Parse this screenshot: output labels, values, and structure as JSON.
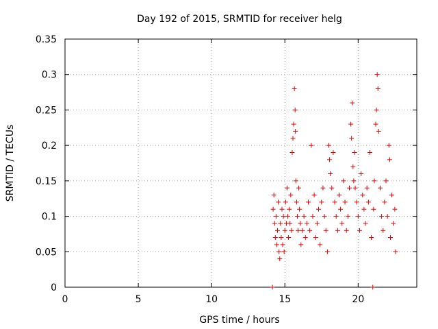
{
  "chart_data": {
    "type": "scatter",
    "title": "Day 192 of 2015, SRMTID for receiver helg",
    "xlabel": "GPS time / hours",
    "ylabel": "SRMTID / TECUs",
    "xlim": [
      0,
      24
    ],
    "ylim": [
      0,
      0.35
    ],
    "xticks": [
      0,
      5,
      10,
      15,
      20
    ],
    "xtick_labels": [
      "0",
      "5",
      "10",
      "15",
      "20"
    ],
    "yticks": [
      0,
      0.05,
      0.1,
      0.15,
      0.2,
      0.25,
      0.3,
      0.35
    ],
    "ytick_labels": [
      "0",
      "0.05",
      "0.1",
      "0.15",
      "0.2",
      "0.25",
      "0.3",
      "0.35"
    ],
    "grid": true,
    "marker": "+",
    "series_color": "#e00000",
    "series": [
      {
        "name": "SRMTID",
        "x_range": [
          14.1,
          22.6
        ],
        "points": [
          [
            14.15,
            0.0
          ],
          [
            14.2,
            0.11
          ],
          [
            14.25,
            0.13
          ],
          [
            14.3,
            0.09
          ],
          [
            14.35,
            0.07
          ],
          [
            14.4,
            0.1
          ],
          [
            14.45,
            0.06
          ],
          [
            14.5,
            0.08
          ],
          [
            14.55,
            0.12
          ],
          [
            14.6,
            0.05
          ],
          [
            14.65,
            0.04
          ],
          [
            14.7,
            0.09
          ],
          [
            14.75,
            0.07
          ],
          [
            14.8,
            0.11
          ],
          [
            14.85,
            0.06
          ],
          [
            14.9,
            0.1
          ],
          [
            14.95,
            0.05
          ],
          [
            15.0,
            0.08
          ],
          [
            15.05,
            0.12
          ],
          [
            15.1,
            0.09
          ],
          [
            15.15,
            0.14
          ],
          [
            15.2,
            0.1
          ],
          [
            15.25,
            0.07
          ],
          [
            15.3,
            0.11
          ],
          [
            15.35,
            0.09
          ],
          [
            15.4,
            0.13
          ],
          [
            15.45,
            0.08
          ],
          [
            15.5,
            0.19
          ],
          [
            15.55,
            0.21
          ],
          [
            15.6,
            0.23
          ],
          [
            15.65,
            0.28
          ],
          [
            15.7,
            0.25
          ],
          [
            15.72,
            0.22
          ],
          [
            15.75,
            0.15
          ],
          [
            15.8,
            0.12
          ],
          [
            15.85,
            0.1
          ],
          [
            15.9,
            0.08
          ],
          [
            15.95,
            0.14
          ],
          [
            16.0,
            0.11
          ],
          [
            16.05,
            0.09
          ],
          [
            16.1,
            0.06
          ],
          [
            16.2,
            0.08
          ],
          [
            16.3,
            0.1
          ],
          [
            16.4,
            0.07
          ],
          [
            16.5,
            0.09
          ],
          [
            16.6,
            0.12
          ],
          [
            16.7,
            0.08
          ],
          [
            16.8,
            0.2
          ],
          [
            16.9,
            0.1
          ],
          [
            17.0,
            0.13
          ],
          [
            17.1,
            0.07
          ],
          [
            17.2,
            0.09
          ],
          [
            17.3,
            0.11
          ],
          [
            17.4,
            0.06
          ],
          [
            17.5,
            0.12
          ],
          [
            17.6,
            0.14
          ],
          [
            17.7,
            0.1
          ],
          [
            17.8,
            0.08
          ],
          [
            17.9,
            0.05
          ],
          [
            18.0,
            0.2
          ],
          [
            18.05,
            0.18
          ],
          [
            18.1,
            0.16
          ],
          [
            18.2,
            0.14
          ],
          [
            18.3,
            0.19
          ],
          [
            18.4,
            0.12
          ],
          [
            18.5,
            0.1
          ],
          [
            18.6,
            0.08
          ],
          [
            18.7,
            0.13
          ],
          [
            18.8,
            0.11
          ],
          [
            18.9,
            0.09
          ],
          [
            19.0,
            0.15
          ],
          [
            19.1,
            0.12
          ],
          [
            19.2,
            0.08
          ],
          [
            19.3,
            0.1
          ],
          [
            19.4,
            0.14
          ],
          [
            19.5,
            0.23
          ],
          [
            19.55,
            0.21
          ],
          [
            19.6,
            0.26
          ],
          [
            19.65,
            0.17
          ],
          [
            19.7,
            0.15
          ],
          [
            19.75,
            0.19
          ],
          [
            19.8,
            0.14
          ],
          [
            19.9,
            0.12
          ],
          [
            20.0,
            0.1
          ],
          [
            20.1,
            0.08
          ],
          [
            20.2,
            0.16
          ],
          [
            20.3,
            0.13
          ],
          [
            20.4,
            0.11
          ],
          [
            20.5,
            0.09
          ],
          [
            20.6,
            0.14
          ],
          [
            20.7,
            0.12
          ],
          [
            20.8,
            0.19
          ],
          [
            20.9,
            0.07
          ],
          [
            21.0,
            0.0
          ],
          [
            21.05,
            0.11
          ],
          [
            21.1,
            0.15
          ],
          [
            21.2,
            0.23
          ],
          [
            21.25,
            0.25
          ],
          [
            21.3,
            0.3
          ],
          [
            21.35,
            0.28
          ],
          [
            21.4,
            0.22
          ],
          [
            21.5,
            0.14
          ],
          [
            21.6,
            0.1
          ],
          [
            21.7,
            0.08
          ],
          [
            21.8,
            0.12
          ],
          [
            21.9,
            0.15
          ],
          [
            22.0,
            0.1
          ],
          [
            22.1,
            0.2
          ],
          [
            22.15,
            0.18
          ],
          [
            22.2,
            0.07
          ],
          [
            22.3,
            0.13
          ],
          [
            22.4,
            0.09
          ],
          [
            22.5,
            0.11
          ],
          [
            22.55,
            0.05
          ]
        ]
      }
    ]
  }
}
